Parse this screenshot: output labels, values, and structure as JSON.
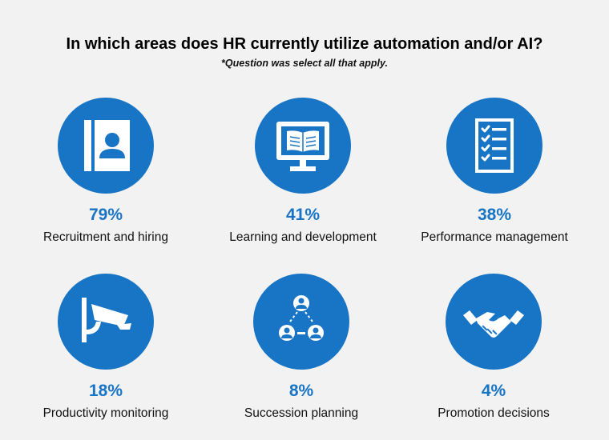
{
  "title": "In which areas does HR currently utilize automation and/or AI?",
  "subtitle": "*Question was select all that apply.",
  "colors": {
    "accent": "#1874c4",
    "background": "#f2f2f2",
    "icon": "#ffffff"
  },
  "items": [
    {
      "percent": "79%",
      "label": "Recruitment and hiring",
      "icon": "contact-book-icon"
    },
    {
      "percent": "41%",
      "label": "Learning and development",
      "icon": "monitor-book-icon"
    },
    {
      "percent": "38%",
      "label": "Performance management",
      "icon": "checklist-icon"
    },
    {
      "percent": "18%",
      "label": "Productivity monitoring",
      "icon": "security-camera-icon"
    },
    {
      "percent": "8%",
      "label": "Succession planning",
      "icon": "people-network-icon"
    },
    {
      "percent": "4%",
      "label": "Promotion decisions",
      "icon": "handshake-icon"
    }
  ]
}
